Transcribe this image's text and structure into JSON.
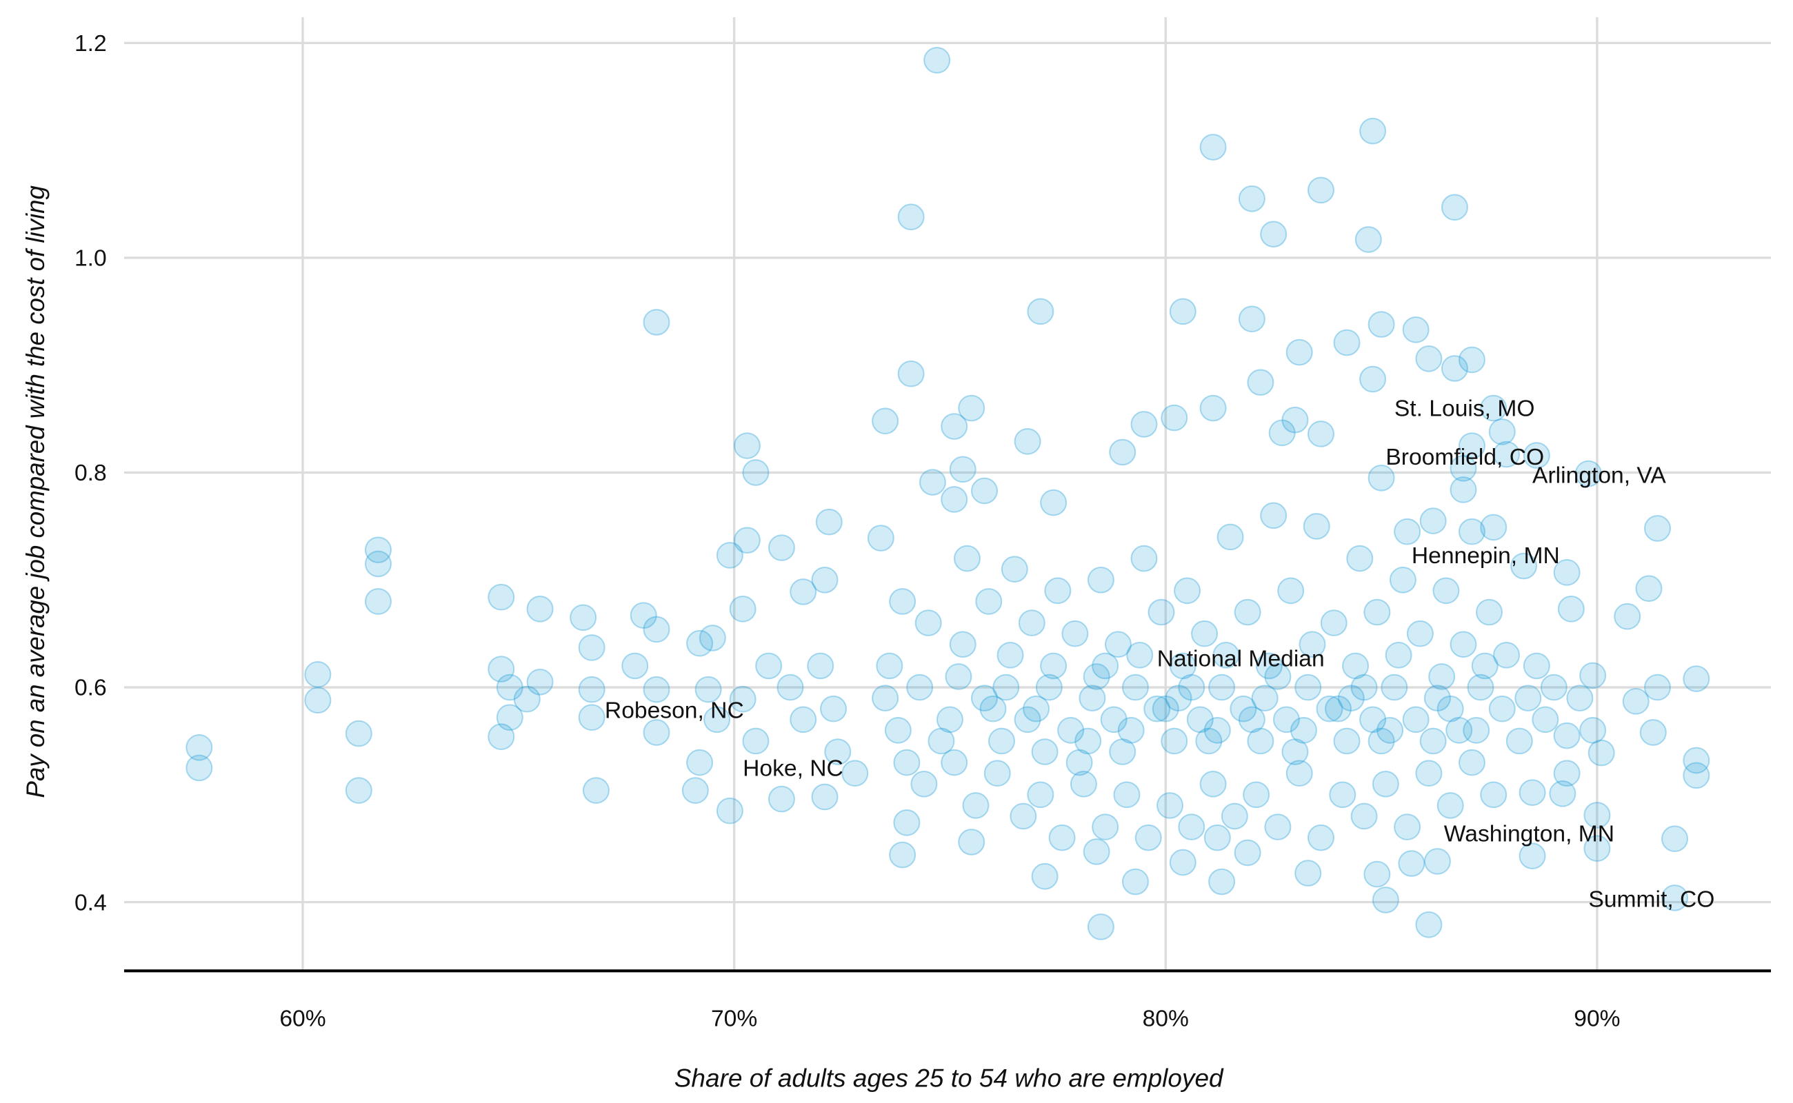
{
  "chart_data": {
    "type": "scatter",
    "title": "",
    "xlabel": "Share of adults ages 25 to 54 who are employed",
    "ylabel": "Pay on an average job compared with the cost of living",
    "xlim": [
      55.86,
      94.03
    ],
    "ylim": [
      0.336,
      1.224
    ],
    "x_ticks": [
      {
        "value": 60,
        "label": "60%"
      },
      {
        "value": 70,
        "label": "70%"
      },
      {
        "value": 80,
        "label": "80%"
      },
      {
        "value": 90,
        "label": "90%"
      }
    ],
    "y_ticks": [
      {
        "value": 0.4,
        "label": "0.4"
      },
      {
        "value": 0.6,
        "label": "0.6"
      },
      {
        "value": 0.8,
        "label": "0.8"
      },
      {
        "value": 1.0,
        "label": "1.0"
      },
      {
        "value": 1.2,
        "label": "1.2"
      }
    ],
    "grid": true,
    "color": "#1a9bd7",
    "points": [
      [
        57.6,
        0.544
      ],
      [
        57.6,
        0.525
      ],
      [
        60.35,
        0.612
      ],
      [
        60.35,
        0.588
      ],
      [
        61.3,
        0.557
      ],
      [
        61.3,
        0.504
      ],
      [
        61.75,
        0.728
      ],
      [
        61.75,
        0.715
      ],
      [
        61.75,
        0.68
      ],
      [
        64.6,
        0.684
      ],
      [
        64.6,
        0.617
      ],
      [
        64.6,
        0.554
      ],
      [
        64.8,
        0.6
      ],
      [
        64.8,
        0.572
      ],
      [
        65.2,
        0.589
      ],
      [
        65.5,
        0.673
      ],
      [
        65.5,
        0.605
      ],
      [
        66.5,
        0.665
      ],
      [
        66.7,
        0.637
      ],
      [
        66.7,
        0.598
      ],
      [
        66.8,
        0.504
      ],
      [
        66.7,
        0.572
      ],
      [
        67.7,
        0.62
      ],
      [
        67.9,
        0.667
      ],
      [
        68.2,
        0.654
      ],
      [
        68.2,
        0.598
      ],
      [
        68.2,
        0.558
      ],
      [
        68.2,
        0.94
      ],
      [
        69.1,
        0.504
      ],
      [
        69.2,
        0.641
      ],
      [
        69.4,
        0.598
      ],
      [
        69.5,
        0.646
      ],
      [
        69.9,
        0.485
      ],
      [
        69.9,
        0.723
      ],
      [
        70.2,
        0.673
      ],
      [
        70.3,
        0.825
      ],
      [
        70.5,
        0.8
      ],
      [
        70.3,
        0.737
      ],
      [
        70.2,
        0.589
      ],
      [
        69.2,
        0.53
      ],
      [
        69.6,
        0.57
      ],
      [
        70.5,
        0.55
      ],
      [
        70.8,
        0.62
      ],
      [
        71.3,
        0.6
      ],
      [
        71.6,
        0.57
      ],
      [
        72.0,
        0.62
      ],
      [
        72.3,
        0.58
      ],
      [
        72.8,
        0.52
      ],
      [
        72.4,
        0.54
      ],
      [
        71.1,
        0.73
      ],
      [
        71.1,
        0.496
      ],
      [
        71.6,
        0.689
      ],
      [
        72.1,
        0.7
      ],
      [
        72.2,
        0.754
      ],
      [
        72.1,
        0.498
      ],
      [
        73.4,
        0.739
      ],
      [
        73.5,
        0.848
      ],
      [
        74.1,
        0.892
      ],
      [
        74.1,
        1.038
      ],
      [
        74.7,
        1.184
      ],
      [
        73.9,
        0.444
      ],
      [
        74.0,
        0.474
      ],
      [
        74.6,
        0.791
      ],
      [
        75.1,
        0.843
      ],
      [
        75.5,
        0.86
      ],
      [
        75.3,
        0.803
      ],
      [
        75.8,
        0.783
      ],
      [
        75.1,
        0.775
      ],
      [
        75.5,
        0.456
      ],
      [
        77.1,
        0.95
      ],
      [
        76.8,
        0.829
      ],
      [
        77.4,
        0.772
      ],
      [
        77.2,
        0.424
      ],
      [
        78.5,
        0.377
      ],
      [
        79.3,
        0.419
      ],
      [
        79.0,
        0.819
      ],
      [
        79.5,
        0.845
      ],
      [
        80.2,
        0.851
      ],
      [
        80.4,
        0.95
      ],
      [
        81.1,
        1.103
      ],
      [
        82.0,
        1.055
      ],
      [
        82.5,
        1.022
      ],
      [
        82.0,
        0.943
      ],
      [
        82.2,
        0.884
      ],
      [
        83.1,
        0.912
      ],
      [
        83.6,
        1.063
      ],
      [
        84.8,
        1.118
      ],
      [
        84.7,
        1.017
      ],
      [
        84.2,
        0.921
      ],
      [
        85.0,
        0.938
      ],
      [
        84.8,
        0.887
      ],
      [
        85.8,
        0.933
      ],
      [
        86.7,
        1.047
      ],
      [
        86.1,
        0.906
      ],
      [
        86.7,
        0.897
      ],
      [
        87.1,
        0.905
      ],
      [
        81.1,
        0.86
      ],
      [
        83.0,
        0.849
      ],
      [
        83.6,
        0.836
      ],
      [
        82.7,
        0.837
      ],
      [
        87.6,
        0.86
      ],
      [
        87.8,
        0.838
      ],
      [
        87.9,
        0.817
      ],
      [
        88.6,
        0.816
      ],
      [
        89.8,
        0.799
      ],
      [
        91.4,
        0.748
      ],
      [
        91.2,
        0.692
      ],
      [
        90.7,
        0.666
      ],
      [
        92.3,
        0.608
      ],
      [
        92.3,
        0.532
      ],
      [
        92.3,
        0.518
      ],
      [
        91.8,
        0.459
      ],
      [
        91.8,
        0.404
      ],
      [
        91.3,
        0.558
      ],
      [
        91.4,
        0.6
      ],
      [
        90.9,
        0.587
      ],
      [
        90.0,
        0.45
      ],
      [
        90.0,
        0.481
      ],
      [
        88.5,
        0.443
      ],
      [
        86.1,
        0.379
      ],
      [
        85.1,
        0.402
      ],
      [
        85.7,
        0.436
      ],
      [
        86.3,
        0.438
      ],
      [
        84.9,
        0.426
      ],
      [
        81.3,
        0.419
      ],
      [
        81.9,
        0.446
      ],
      [
        83.3,
        0.427
      ],
      [
        81.2,
        0.46
      ],
      [
        80.4,
        0.437
      ],
      [
        78.4,
        0.447
      ],
      [
        89.2,
        0.501
      ],
      [
        88.5,
        0.502
      ],
      [
        89.3,
        0.555
      ],
      [
        90.1,
        0.539
      ],
      [
        89.9,
        0.611
      ],
      [
        89.3,
        0.707
      ],
      [
        89.4,
        0.673
      ],
      [
        88.3,
        0.713
      ],
      [
        87.6,
        0.749
      ],
      [
        87.1,
        0.745
      ],
      [
        86.2,
        0.755
      ],
      [
        85.6,
        0.745
      ],
      [
        85.0,
        0.795
      ],
      [
        86.9,
        0.784
      ],
      [
        86.9,
        0.804
      ],
      [
        87.1,
        0.825
      ],
      [
        73.5,
        0.59
      ],
      [
        73.8,
        0.56
      ],
      [
        73.6,
        0.62
      ],
      [
        73.9,
        0.68
      ],
      [
        74.0,
        0.53
      ],
      [
        74.3,
        0.6
      ],
      [
        74.5,
        0.66
      ],
      [
        74.4,
        0.51
      ],
      [
        75.0,
        0.57
      ],
      [
        75.2,
        0.61
      ],
      [
        75.3,
        0.64
      ],
      [
        75.1,
        0.53
      ],
      [
        75.4,
        0.72
      ],
      [
        75.6,
        0.49
      ],
      [
        75.8,
        0.59
      ],
      [
        75.9,
        0.68
      ],
      [
        76.2,
        0.55
      ],
      [
        76.3,
        0.6
      ],
      [
        76.4,
        0.63
      ],
      [
        76.1,
        0.52
      ],
      [
        76.5,
        0.71
      ],
      [
        76.7,
        0.48
      ],
      [
        76.8,
        0.57
      ],
      [
        76.9,
        0.66
      ],
      [
        77.2,
        0.54
      ],
      [
        77.3,
        0.6
      ],
      [
        77.4,
        0.62
      ],
      [
        77.1,
        0.5
      ],
      [
        77.5,
        0.69
      ],
      [
        77.6,
        0.46
      ],
      [
        77.8,
        0.56
      ],
      [
        77.9,
        0.65
      ],
      [
        78.2,
        0.55
      ],
      [
        78.3,
        0.59
      ],
      [
        78.4,
        0.61
      ],
      [
        78.1,
        0.51
      ],
      [
        78.5,
        0.7
      ],
      [
        78.6,
        0.47
      ],
      [
        78.8,
        0.57
      ],
      [
        78.9,
        0.64
      ],
      [
        79.2,
        0.56
      ],
      [
        79.3,
        0.6
      ],
      [
        79.4,
        0.63
      ],
      [
        79.1,
        0.5
      ],
      [
        79.5,
        0.72
      ],
      [
        79.6,
        0.46
      ],
      [
        79.8,
        0.58
      ],
      [
        79.9,
        0.67
      ],
      [
        80.2,
        0.55
      ],
      [
        80.3,
        0.59
      ],
      [
        80.4,
        0.62
      ],
      [
        80.1,
        0.49
      ],
      [
        80.5,
        0.69
      ],
      [
        80.6,
        0.47
      ],
      [
        80.8,
        0.57
      ],
      [
        80.9,
        0.65
      ],
      [
        81.2,
        0.56
      ],
      [
        81.3,
        0.6
      ],
      [
        81.4,
        0.63
      ],
      [
        81.1,
        0.51
      ],
      [
        81.5,
        0.74
      ],
      [
        81.6,
        0.48
      ],
      [
        81.8,
        0.58
      ],
      [
        81.9,
        0.67
      ],
      [
        82.2,
        0.55
      ],
      [
        82.3,
        0.59
      ],
      [
        82.4,
        0.62
      ],
      [
        82.1,
        0.5
      ],
      [
        82.5,
        0.76
      ],
      [
        82.6,
        0.47
      ],
      [
        82.8,
        0.57
      ],
      [
        82.9,
        0.69
      ],
      [
        83.2,
        0.56
      ],
      [
        83.3,
        0.6
      ],
      [
        83.4,
        0.64
      ],
      [
        83.1,
        0.52
      ],
      [
        83.5,
        0.75
      ],
      [
        83.6,
        0.46
      ],
      [
        83.8,
        0.58
      ],
      [
        83.9,
        0.66
      ],
      [
        84.2,
        0.55
      ],
      [
        84.3,
        0.59
      ],
      [
        84.4,
        0.62
      ],
      [
        84.1,
        0.5
      ],
      [
        84.5,
        0.72
      ],
      [
        84.6,
        0.48
      ],
      [
        84.8,
        0.57
      ],
      [
        84.9,
        0.67
      ],
      [
        85.2,
        0.56
      ],
      [
        85.3,
        0.6
      ],
      [
        85.4,
        0.63
      ],
      [
        85.1,
        0.51
      ],
      [
        85.5,
        0.7
      ],
      [
        85.6,
        0.47
      ],
      [
        85.8,
        0.57
      ],
      [
        85.9,
        0.65
      ],
      [
        86.2,
        0.55
      ],
      [
        86.3,
        0.59
      ],
      [
        86.4,
        0.61
      ],
      [
        86.1,
        0.52
      ],
      [
        86.5,
        0.69
      ],
      [
        86.6,
        0.49
      ],
      [
        86.8,
        0.56
      ],
      [
        86.9,
        0.64
      ],
      [
        87.2,
        0.56
      ],
      [
        87.3,
        0.6
      ],
      [
        87.4,
        0.62
      ],
      [
        87.1,
        0.53
      ],
      [
        87.5,
        0.67
      ],
      [
        87.6,
        0.5
      ],
      [
        87.8,
        0.58
      ],
      [
        87.9,
        0.63
      ],
      [
        88.2,
        0.55
      ],
      [
        88.4,
        0.59
      ],
      [
        88.6,
        0.62
      ],
      [
        88.8,
        0.57
      ],
      [
        89.0,
        0.6
      ],
      [
        89.3,
        0.52
      ],
      [
        89.6,
        0.59
      ],
      [
        89.9,
        0.56
      ],
      [
        78.0,
        0.53
      ],
      [
        79.0,
        0.54
      ],
      [
        80.0,
        0.58
      ],
      [
        81.0,
        0.55
      ],
      [
        82.0,
        0.57
      ],
      [
        83.0,
        0.54
      ],
      [
        84.0,
        0.58
      ],
      [
        85.0,
        0.55
      ],
      [
        77.0,
        0.58
      ],
      [
        78.6,
        0.62
      ],
      [
        80.6,
        0.6
      ],
      [
        82.6,
        0.61
      ],
      [
        84.6,
        0.6
      ],
      [
        86.6,
        0.58
      ],
      [
        76.0,
        0.58
      ],
      [
        74.8,
        0.55
      ]
    ],
    "annotations": [
      {
        "label": "St. Louis, MO",
        "x": 85.3,
        "y": 0.86
      },
      {
        "label": "Broomfield, CO",
        "x": 85.1,
        "y": 0.815
      },
      {
        "label": "Arlington, VA",
        "x": 88.5,
        "y": 0.798
      },
      {
        "label": "Hennepin, MN",
        "x": 85.7,
        "y": 0.723
      },
      {
        "label": "National Median",
        "x": 79.8,
        "y": 0.627
      },
      {
        "label": "Robeson, NC",
        "x": 67.0,
        "y": 0.579
      },
      {
        "label": "Hoke, NC",
        "x": 70.2,
        "y": 0.525
      },
      {
        "label": "Washington, MN",
        "x": 86.45,
        "y": 0.464
      },
      {
        "label": "Summit, CO",
        "x": 89.8,
        "y": 0.403
      }
    ]
  }
}
